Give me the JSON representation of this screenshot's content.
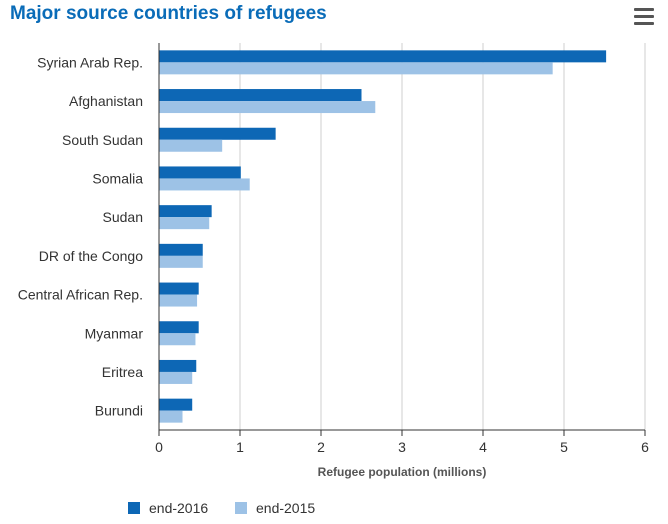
{
  "title": "Major source countries of refugees",
  "menu_icon": "hamburger-menu-icon",
  "colors": {
    "end-2016": "#0d67b5",
    "end-2015": "#9dc2e6",
    "grid": "#cfcfcf",
    "axis": "#333333"
  },
  "chart_data": {
    "type": "bar",
    "orientation": "horizontal",
    "categories": [
      "Syrian Arab Rep.",
      "Afghanistan",
      "South Sudan",
      "Somalia",
      "Sudan",
      "DR of the Congo",
      "Central African Rep.",
      "Myanmar",
      "Eritrea",
      "Burundi"
    ],
    "series": [
      {
        "name": "end-2016",
        "values": [
          5.52,
          2.5,
          1.44,
          1.01,
          0.65,
          0.54,
          0.49,
          0.49,
          0.46,
          0.41
        ]
      },
      {
        "name": "end-2015",
        "values": [
          4.86,
          2.67,
          0.78,
          1.12,
          0.62,
          0.54,
          0.47,
          0.45,
          0.41,
          0.29
        ]
      }
    ],
    "xlabel": "Refugee population (millions)",
    "ylabel": "",
    "xlim": [
      0,
      6
    ],
    "xticks": [
      0,
      1,
      2,
      3,
      4,
      5,
      6
    ],
    "grid": true,
    "legend": "bottom-left"
  }
}
